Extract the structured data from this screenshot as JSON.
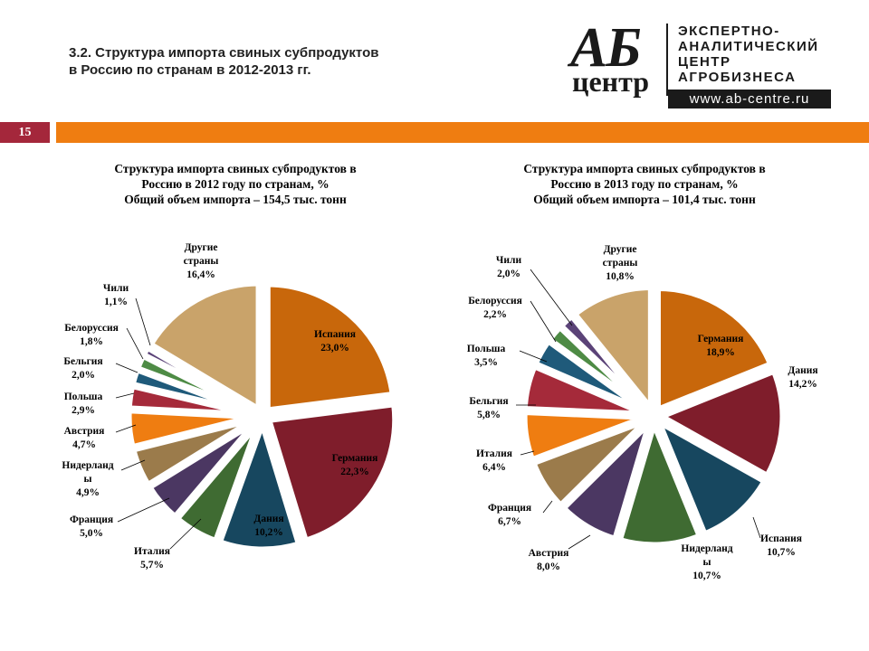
{
  "header": {
    "title_lines": [
      "3.2. Структура импорта свиных субпродуктов",
      "в Россию по странам в 2012-2013 гг."
    ],
    "page_number": "15"
  },
  "logo": {
    "ab": "АБ",
    "centr": "центр",
    "lines": [
      "ЭКСПЕРТНО-",
      "АНАЛИТИЧЕСКИЙ",
      "ЦЕНТР",
      "АГРОБИЗНЕСА"
    ],
    "url": "www.ab-centre.ru"
  },
  "colors": {
    "accent_orange": "#ef7d11",
    "badge_red": "#a4273b"
  },
  "chart_data": [
    {
      "type": "pie",
      "title_lines": [
        "Структура импорта свиных субпродуктов в",
        "Россию в 2012 году по странам, %",
        "Общий объем импорта – 154,5 тыс. тонн"
      ],
      "slices": [
        {
          "label_lines": [
            "Испания"
          ],
          "value": 23.0,
          "value_label": "23,0%",
          "color": "#c8670b"
        },
        {
          "label_lines": [
            "Германия"
          ],
          "value": 22.3,
          "value_label": "22,3%",
          "color": "#7f1d2b"
        },
        {
          "label_lines": [
            "Дания"
          ],
          "value": 10.2,
          "value_label": "10,2%",
          "color": "#17475f"
        },
        {
          "label_lines": [
            "Италия"
          ],
          "value": 5.7,
          "value_label": "5,7%",
          "color": "#3f6b32"
        },
        {
          "label_lines": [
            "Франция"
          ],
          "value": 5.0,
          "value_label": "5,0%",
          "color": "#4b3762"
        },
        {
          "label_lines": [
            "Нидерланд",
            "ы"
          ],
          "value": 4.9,
          "value_label": "4,9%",
          "color": "#9b7b4b"
        },
        {
          "label_lines": [
            "Австрия"
          ],
          "value": 4.7,
          "value_label": "4,7%",
          "color": "#ef7d11"
        },
        {
          "label_lines": [
            "Польша"
          ],
          "value": 2.9,
          "value_label": "2,9%",
          "color": "#a52a3a"
        },
        {
          "label_lines": [
            "Бельгия"
          ],
          "value": 2.0,
          "value_label": "2,0%",
          "color": "#1f5a7a"
        },
        {
          "label_lines": [
            "Белоруссия"
          ],
          "value": 1.8,
          "value_label": "1,8%",
          "color": "#4e8b45"
        },
        {
          "label_lines": [
            "Чили"
          ],
          "value": 1.1,
          "value_label": "1,1%",
          "color": "#5b4378"
        },
        {
          "label_lines": [
            "Другие",
            "страны"
          ],
          "value": 16.4,
          "value_label": "16,4%",
          "color": "#c9a36a"
        }
      ]
    },
    {
      "type": "pie",
      "title_lines": [
        "Структура импорта свиных субпродуктов в",
        "Россию в 2013 году по странам, %",
        "Общий объем импорта – 101,4 тыс. тонн"
      ],
      "slices": [
        {
          "label_lines": [
            "Германия"
          ],
          "value": 18.9,
          "value_label": "18,9%",
          "color": "#c8670b"
        },
        {
          "label_lines": [
            "Дания"
          ],
          "value": 14.2,
          "value_label": "14,2%",
          "color": "#7f1d2b"
        },
        {
          "label_lines": [
            "Испания"
          ],
          "value": 10.7,
          "value_label": "10,7%",
          "color": "#17475f"
        },
        {
          "label_lines": [
            "Нидерланд",
            "ы"
          ],
          "value": 10.7,
          "value_label": "10,7%",
          "color": "#3f6b32"
        },
        {
          "label_lines": [
            "Австрия"
          ],
          "value": 8.0,
          "value_label": "8,0%",
          "color": "#4b3762"
        },
        {
          "label_lines": [
            "Франция"
          ],
          "value": 6.7,
          "value_label": "6,7%",
          "color": "#9b7b4b"
        },
        {
          "label_lines": [
            "Италия"
          ],
          "value": 6.4,
          "value_label": "6,4%",
          "color": "#ef7d11"
        },
        {
          "label_lines": [
            "Бельгия"
          ],
          "value": 5.8,
          "value_label": "5,8%",
          "color": "#a52a3a"
        },
        {
          "label_lines": [
            "Польша"
          ],
          "value": 3.5,
          "value_label": "3,5%",
          "color": "#1f5a7a"
        },
        {
          "label_lines": [
            "Белоруссия"
          ],
          "value": 2.2,
          "value_label": "2,2%",
          "color": "#4e8b45"
        },
        {
          "label_lines": [
            "Чили"
          ],
          "value": 2.0,
          "value_label": "2,0%",
          "color": "#5b4378"
        },
        {
          "label_lines": [
            "Другие",
            "страны"
          ],
          "value": 10.8,
          "value_label": "10,8%",
          "color": "#c9a36a"
        }
      ]
    }
  ]
}
